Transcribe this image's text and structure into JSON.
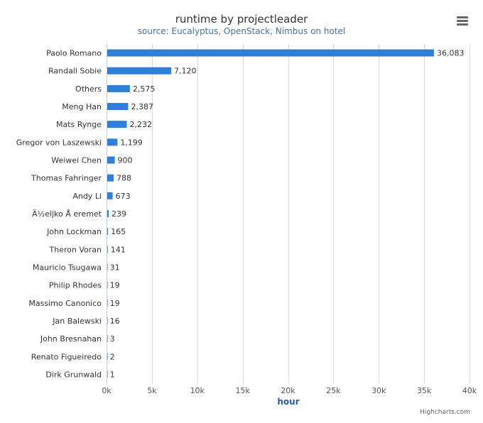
{
  "chart_data": {
    "type": "bar",
    "orientation": "horizontal",
    "title": "runtime by projectleader",
    "subtitle": "source: Eucalyptus, OpenStack, Nimbus on hotel",
    "categories": [
      "Paolo Romano",
      "Randall Sobie",
      "Others",
      "Meng Han",
      "Mats Rynge",
      "Gregor von Laszewski",
      "Weiwei Chen",
      "Thomas Fahringer",
      "Andy Li",
      "Ã½eljko Å eremet",
      "John Lockman",
      "Theron Voran",
      "Mauricio Tsugawa",
      "Philip Rhodes",
      "Massimo Canonico",
      "Jan Balewski",
      "John Bresnahan",
      "Renato Figueiredo",
      "Dirk Grunwald"
    ],
    "values": [
      36083,
      7120,
      2575,
      2387,
      2232,
      1199,
      900,
      788,
      673,
      239,
      165,
      141,
      31,
      19,
      19,
      16,
      3,
      2,
      1
    ],
    "data_labels": [
      "36,083",
      "7,120",
      "2,575",
      "2,387",
      "2,232",
      "1,199",
      "900",
      "788",
      "673",
      "239",
      "165",
      "141",
      "31",
      "19",
      "19",
      "16",
      "3",
      "2",
      "1"
    ],
    "xlabel": "hour",
    "xlim": [
      0,
      40000
    ],
    "ticks": [
      0,
      5000,
      10000,
      15000,
      20000,
      25000,
      30000,
      35000,
      40000
    ],
    "tick_labels": [
      "0k",
      "5k",
      "10k",
      "15k",
      "20k",
      "25k",
      "30k",
      "35k",
      "40k"
    ],
    "grid": true,
    "bar_color": "#2f7ed8"
  },
  "credits": "Highcharts.com",
  "menu": {
    "icon": "hamburger-menu-icon"
  }
}
